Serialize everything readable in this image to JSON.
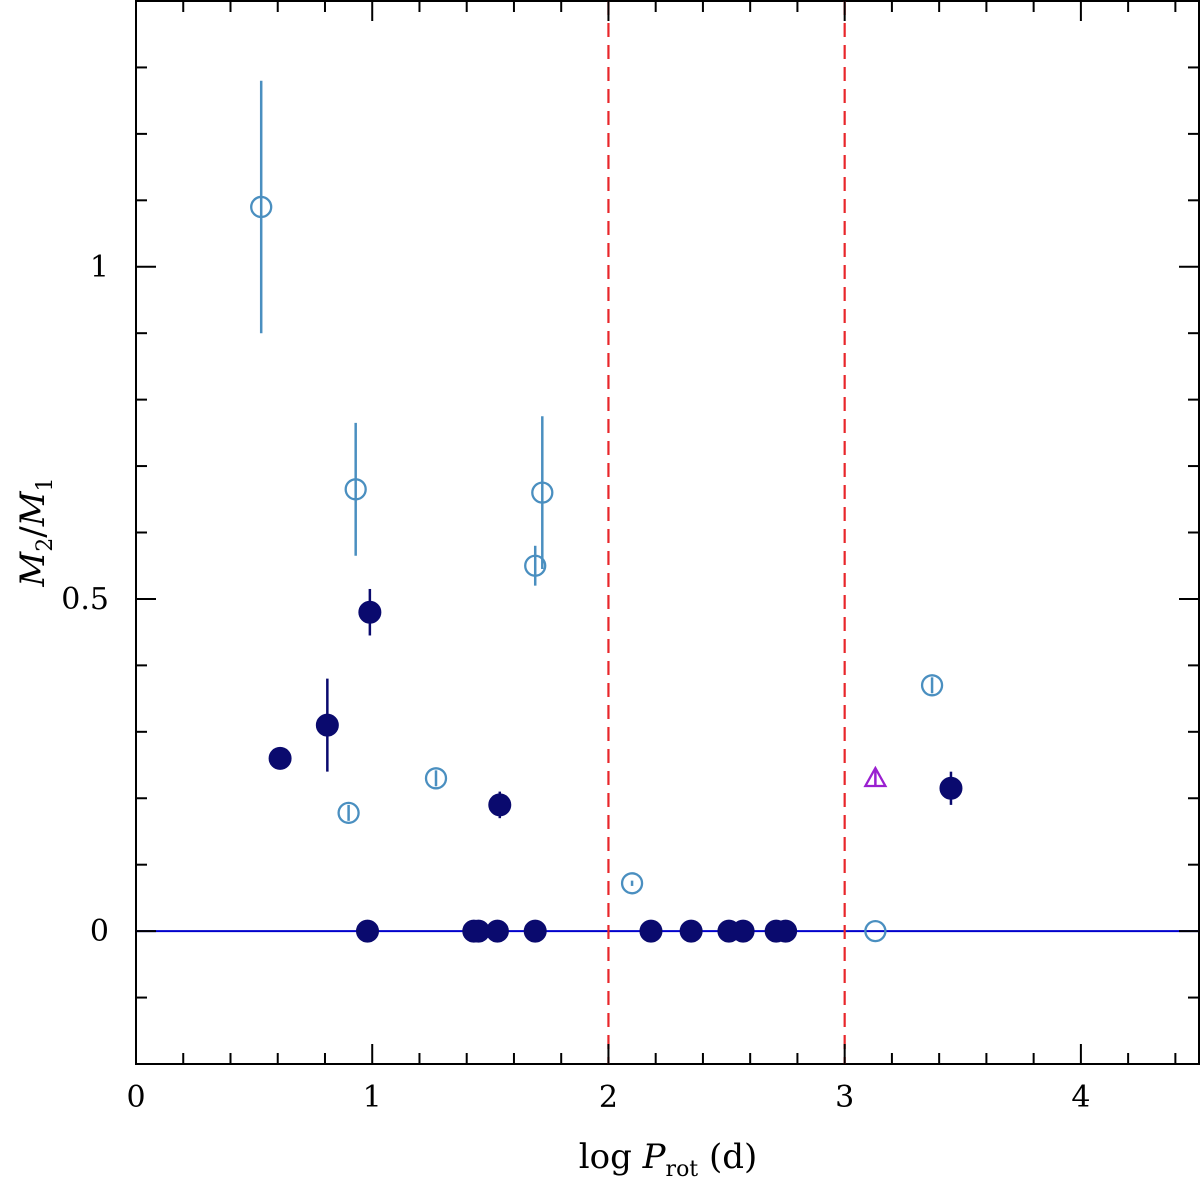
{
  "chart_data": {
    "type": "scatter",
    "title": "",
    "xlabel": {
      "main": "log ",
      "var": "P",
      "sub": "rot",
      "unit": " (d)"
    },
    "ylabel": {
      "num": "M",
      "num_sub": "2",
      "slash": "/",
      "den": "M",
      "den_sub": "1"
    },
    "xlim": [
      0,
      4.5
    ],
    "ylim": [
      -0.2,
      1.4
    ],
    "x_ticks_major": [
      0,
      1,
      2,
      3,
      4
    ],
    "x_tick_labels": [
      "0",
      "1",
      "2",
      "3",
      "4"
    ],
    "y_ticks_major": [
      0,
      0.5,
      1
    ],
    "y_tick_labels": [
      "0",
      "0.5",
      "1"
    ],
    "reference_lines": {
      "horizontal": [
        {
          "y": 0,
          "color": "#0000cc",
          "style": "solid"
        }
      ],
      "vertical": [
        {
          "x": 2,
          "color": "#e8262a",
          "style": "dashed"
        },
        {
          "x": 3,
          "color": "#e8262a",
          "style": "dashed"
        }
      ]
    },
    "series": [
      {
        "name": "filled-navy-circles",
        "marker": "filled-circle",
        "color": "#0a0a6e",
        "points": [
          {
            "x": 0.61,
            "y": 0.26,
            "err": 0
          },
          {
            "x": 0.81,
            "y": 0.31,
            "err": 0.07
          },
          {
            "x": 0.99,
            "y": 0.48,
            "err": 0.035
          },
          {
            "x": 1.54,
            "y": 0.19,
            "err": 0.02
          },
          {
            "x": 3.45,
            "y": 0.215,
            "err": 0.025
          },
          {
            "x": 0.98,
            "y": 0,
            "err": 0
          },
          {
            "x": 1.43,
            "y": 0,
            "err": 0
          },
          {
            "x": 1.45,
            "y": 0,
            "err": 0
          },
          {
            "x": 1.53,
            "y": 0,
            "err": 0
          },
          {
            "x": 1.69,
            "y": 0,
            "err": 0
          },
          {
            "x": 2.18,
            "y": 0,
            "err": 0
          },
          {
            "x": 2.35,
            "y": 0,
            "err": 0
          },
          {
            "x": 2.51,
            "y": 0,
            "err": 0
          },
          {
            "x": 2.57,
            "y": 0,
            "err": 0
          },
          {
            "x": 2.71,
            "y": 0,
            "err": 0
          },
          {
            "x": 2.75,
            "y": 0,
            "err": 0
          }
        ]
      },
      {
        "name": "open-lightblue-circles",
        "marker": "open-circle",
        "color": "#4a8fc0",
        "points": [
          {
            "x": 0.53,
            "y": 1.09,
            "err": 0.19
          },
          {
            "x": 0.93,
            "y": 0.665,
            "err": 0.1
          },
          {
            "x": 1.72,
            "y": 0.66,
            "err": 0.115
          },
          {
            "x": 1.69,
            "y": 0.55,
            "err": 0.03
          },
          {
            "x": 0.9,
            "y": 0.178,
            "err": 0.012
          },
          {
            "x": 1.27,
            "y": 0.23,
            "err": 0.012
          },
          {
            "x": 2.1,
            "y": 0.072,
            "err": 0.004
          },
          {
            "x": 3.37,
            "y": 0.37,
            "err": 0.012
          },
          {
            "x": 3.13,
            "y": 0,
            "err": 0
          }
        ]
      },
      {
        "name": "open-purple-triangle",
        "marker": "open-triangle",
        "color": "#9a1fd0",
        "points": [
          {
            "x": 3.13,
            "y": 0.23,
            "err": 0.013
          }
        ]
      }
    ]
  }
}
